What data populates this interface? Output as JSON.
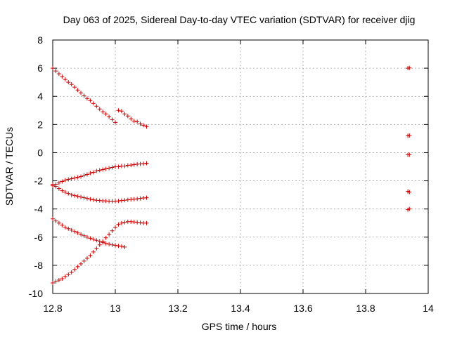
{
  "chart_data": {
    "type": "scatter",
    "title": "Day 063 of 2025, Sidereal Day-to-day VTEC variation (SDTVAR) for receiver djig",
    "xlabel": "GPS time / hours",
    "ylabel": "SDTVAR / TECUs",
    "xlim": [
      12.8,
      14.0
    ],
    "ylim": [
      -10,
      8
    ],
    "xticks": [
      12.8,
      13.0,
      13.2,
      13.4,
      13.6,
      13.8,
      14.0
    ],
    "xtick_labels": [
      "12.8",
      "13",
      "13.2",
      "13.4",
      "13.6",
      "13.8",
      "14"
    ],
    "yticks": [
      -10,
      -8,
      -6,
      -4,
      -2,
      0,
      2,
      4,
      6,
      8
    ],
    "ytick_labels": [
      "-10",
      "-8",
      "-6",
      "-4",
      "-2",
      "0",
      "2",
      "4",
      "6",
      "8"
    ],
    "grid": true,
    "marker": "plus",
    "color": "#cc0000",
    "series": [
      {
        "x": [
          12.8,
          12.81,
          12.82,
          12.83,
          12.84,
          12.85,
          12.86,
          12.87,
          12.88,
          12.89,
          12.9,
          12.91,
          12.92,
          12.93,
          12.94,
          12.95,
          12.96,
          12.97,
          12.98,
          12.99,
          13.0,
          13.01,
          13.02,
          13.03,
          13.04,
          13.05,
          13.06,
          13.07,
          13.08,
          13.09,
          13.1
        ],
        "y": [
          6.0,
          5.8,
          5.6,
          5.4,
          5.2,
          5.0,
          4.85,
          4.65,
          4.45,
          4.25,
          4.05,
          3.85,
          3.7,
          3.5,
          3.3,
          3.1,
          2.9,
          2.75,
          2.55,
          2.35,
          2.15,
          3.0,
          2.95,
          2.75,
          2.6,
          2.4,
          2.25,
          2.2,
          2.05,
          1.95,
          1.85
        ]
      },
      {
        "x": [
          12.8,
          12.81,
          12.82,
          12.83,
          12.84,
          12.85,
          12.86,
          12.87,
          12.88,
          12.89,
          12.9,
          12.91,
          12.92,
          12.93,
          12.94,
          12.95,
          12.96,
          12.97,
          12.98,
          12.99,
          13.0,
          13.01,
          13.02,
          13.03,
          13.04,
          13.05,
          13.06,
          13.07,
          13.08,
          13.09,
          13.1
        ],
        "y": [
          -2.35,
          -2.25,
          -2.15,
          -2.05,
          -1.95,
          -1.9,
          -1.85,
          -1.8,
          -1.75,
          -1.7,
          -1.6,
          -1.55,
          -1.45,
          -1.4,
          -1.3,
          -1.25,
          -1.2,
          -1.15,
          -1.1,
          -1.05,
          -1.0,
          -1.0,
          -0.95,
          -0.95,
          -0.9,
          -0.88,
          -0.85,
          -0.82,
          -0.8,
          -0.78,
          -0.75
        ]
      },
      {
        "x": [
          12.8,
          12.81,
          12.82,
          12.83,
          12.84,
          12.85,
          12.86,
          12.87,
          12.88,
          12.89,
          12.9,
          12.91,
          12.92,
          12.93,
          12.94,
          12.95,
          12.96,
          12.97,
          12.98,
          12.99,
          13.0,
          13.01,
          13.02,
          13.03,
          13.04,
          13.05,
          13.06,
          13.07,
          13.08,
          13.09,
          13.1
        ],
        "y": [
          -2.25,
          -2.4,
          -2.55,
          -2.7,
          -2.8,
          -2.9,
          -3.0,
          -3.05,
          -3.1,
          -3.15,
          -3.2,
          -3.25,
          -3.3,
          -3.35,
          -3.38,
          -3.4,
          -3.42,
          -3.43,
          -3.45,
          -3.45,
          -3.45,
          -3.43,
          -3.4,
          -3.38,
          -3.35,
          -3.32,
          -3.3,
          -3.28,
          -3.25,
          -3.22,
          -3.2
        ]
      },
      {
        "x": [
          12.8,
          12.81,
          12.82,
          12.83,
          12.84,
          12.85,
          12.86,
          12.87,
          12.88,
          12.89,
          12.9,
          12.91,
          12.92,
          12.93,
          12.94,
          12.95,
          12.96,
          12.97,
          12.98,
          12.99,
          13.0,
          13.01,
          13.02,
          13.03
        ],
        "y": [
          -4.7,
          -4.85,
          -5.0,
          -5.15,
          -5.3,
          -5.4,
          -5.5,
          -5.6,
          -5.7,
          -5.8,
          -5.9,
          -6.0,
          -6.08,
          -6.15,
          -6.22,
          -6.3,
          -6.38,
          -6.45,
          -6.5,
          -6.55,
          -6.58,
          -6.62,
          -6.65,
          -6.7
        ]
      },
      {
        "x": [
          12.8,
          12.81,
          12.82,
          12.83,
          12.84,
          12.85,
          12.86,
          12.87,
          12.88,
          12.89,
          12.9,
          12.91,
          12.92,
          12.93,
          12.94,
          12.95,
          12.96,
          12.97,
          12.98,
          12.99,
          13.0,
          13.01,
          13.02,
          13.03,
          13.04,
          13.05,
          13.06,
          13.07,
          13.08,
          13.09,
          13.1
        ],
        "y": [
          -9.25,
          -9.15,
          -9.05,
          -8.95,
          -8.8,
          -8.65,
          -8.5,
          -8.3,
          -8.1,
          -7.9,
          -7.7,
          -7.5,
          -7.3,
          -7.05,
          -6.8,
          -6.55,
          -6.3,
          -6.05,
          -5.8,
          -5.55,
          -5.3,
          -5.1,
          -5.0,
          -4.95,
          -4.9,
          -4.9,
          -4.92,
          -4.95,
          -4.97,
          -5.0,
          -5.0
        ]
      },
      {
        "x": [
          13.935,
          13.94
        ],
        "y": [
          6.0,
          6.02
        ]
      },
      {
        "x": [
          13.935,
          13.94
        ],
        "y": [
          1.2,
          1.22
        ]
      },
      {
        "x": [
          13.935,
          13.94
        ],
        "y": [
          -0.15,
          -0.15
        ]
      },
      {
        "x": [
          13.935,
          13.94
        ],
        "y": [
          -2.75,
          -2.8
        ]
      },
      {
        "x": [
          13.935,
          13.94
        ],
        "y": [
          -4.05,
          -4.0
        ]
      }
    ]
  }
}
